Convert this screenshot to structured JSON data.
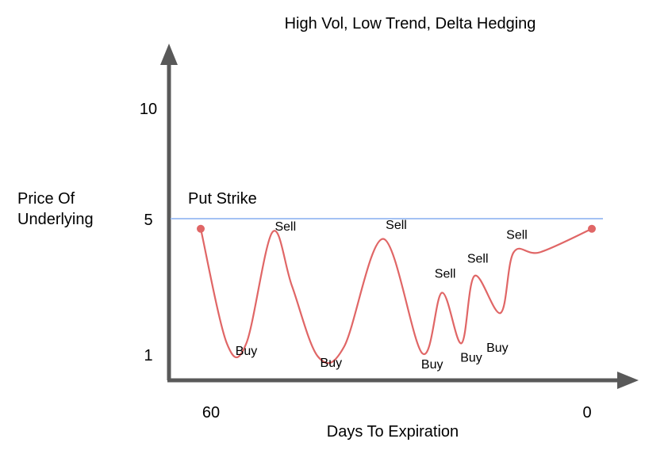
{
  "chart_data": {
    "type": "line",
    "title": "High Vol, Low Trend, Delta Hedging",
    "xlabel": "Days To Expiration",
    "ylabel": [
      "Price Of",
      "Underlying"
    ],
    "x_ticks": [
      "60",
      "0"
    ],
    "y_ticks": [
      "10",
      "5",
      "1"
    ],
    "reference_line": {
      "label": "Put Strike",
      "value": 5,
      "color": "#a4c2f4"
    },
    "series": [
      {
        "color": "#e06666",
        "points": [
          [
            60,
            4.7
          ],
          [
            56,
            1.3
          ],
          [
            53,
            1.3
          ],
          [
            49,
            4.6
          ],
          [
            46,
            3.0
          ],
          [
            42,
            0.9
          ],
          [
            38,
            1.2
          ],
          [
            32,
            4.4
          ],
          [
            26,
            1.0
          ],
          [
            23,
            2.8
          ],
          [
            20,
            1.3
          ],
          [
            18,
            3.3
          ],
          [
            14,
            2.2
          ],
          [
            12,
            4.0
          ],
          [
            8,
            4.0
          ],
          [
            0,
            4.7
          ]
        ]
      }
    ],
    "annotations": [
      {
        "text": "Buy",
        "x": 53,
        "y": 0.95
      },
      {
        "text": "Sell",
        "x": 47,
        "y": 4.65
      },
      {
        "text": "Buy",
        "x": 40,
        "y": 0.6
      },
      {
        "text": "Sell",
        "x": 30,
        "y": 4.7
      },
      {
        "text": "Buy",
        "x": 24.5,
        "y": 0.55
      },
      {
        "text": "Sell",
        "x": 22.5,
        "y": 3.25
      },
      {
        "text": "Buy",
        "x": 18.5,
        "y": 0.75
      },
      {
        "text": "Sell",
        "x": 17.5,
        "y": 3.7
      },
      {
        "text": "Buy",
        "x": 14.5,
        "y": 1.05
      },
      {
        "text": "Sell",
        "x": 11.5,
        "y": 4.4
      }
    ]
  }
}
